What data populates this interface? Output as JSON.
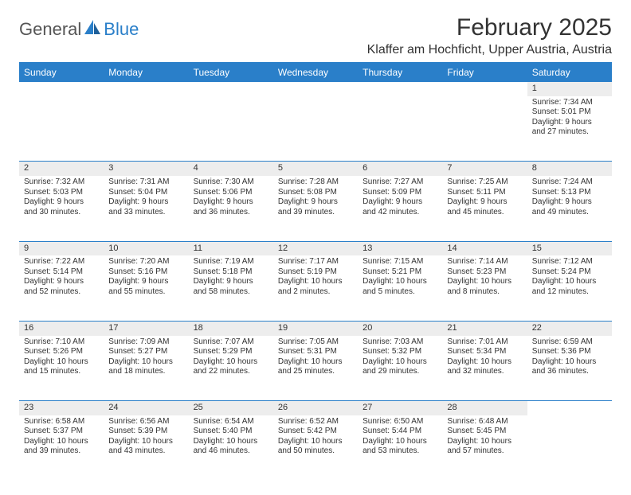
{
  "logo": {
    "text1": "General",
    "text2": "Blue"
  },
  "title": "February 2025",
  "location": "Klaffer am Hochficht, Upper Austria, Austria",
  "colors": {
    "accent": "#2a7fc9",
    "header_bg": "#2a7fc9",
    "header_text": "#ffffff",
    "daynum_bg": "#ededed",
    "text": "#333333",
    "background": "#ffffff"
  },
  "typography": {
    "title_fontsize": 30,
    "location_fontsize": 16,
    "weekday_fontsize": 12,
    "daynum_fontsize": 11,
    "cell_fontsize": 10
  },
  "weekdays": [
    "Sunday",
    "Monday",
    "Tuesday",
    "Wednesday",
    "Thursday",
    "Friday",
    "Saturday"
  ],
  "weeks": [
    [
      null,
      null,
      null,
      null,
      null,
      null,
      {
        "d": "1",
        "sunrise": "Sunrise: 7:34 AM",
        "sunset": "Sunset: 5:01 PM",
        "daylight": "Daylight: 9 hours and 27 minutes."
      }
    ],
    [
      {
        "d": "2",
        "sunrise": "Sunrise: 7:32 AM",
        "sunset": "Sunset: 5:03 PM",
        "daylight": "Daylight: 9 hours and 30 minutes."
      },
      {
        "d": "3",
        "sunrise": "Sunrise: 7:31 AM",
        "sunset": "Sunset: 5:04 PM",
        "daylight": "Daylight: 9 hours and 33 minutes."
      },
      {
        "d": "4",
        "sunrise": "Sunrise: 7:30 AM",
        "sunset": "Sunset: 5:06 PM",
        "daylight": "Daylight: 9 hours and 36 minutes."
      },
      {
        "d": "5",
        "sunrise": "Sunrise: 7:28 AM",
        "sunset": "Sunset: 5:08 PM",
        "daylight": "Daylight: 9 hours and 39 minutes."
      },
      {
        "d": "6",
        "sunrise": "Sunrise: 7:27 AM",
        "sunset": "Sunset: 5:09 PM",
        "daylight": "Daylight: 9 hours and 42 minutes."
      },
      {
        "d": "7",
        "sunrise": "Sunrise: 7:25 AM",
        "sunset": "Sunset: 5:11 PM",
        "daylight": "Daylight: 9 hours and 45 minutes."
      },
      {
        "d": "8",
        "sunrise": "Sunrise: 7:24 AM",
        "sunset": "Sunset: 5:13 PM",
        "daylight": "Daylight: 9 hours and 49 minutes."
      }
    ],
    [
      {
        "d": "9",
        "sunrise": "Sunrise: 7:22 AM",
        "sunset": "Sunset: 5:14 PM",
        "daylight": "Daylight: 9 hours and 52 minutes."
      },
      {
        "d": "10",
        "sunrise": "Sunrise: 7:20 AM",
        "sunset": "Sunset: 5:16 PM",
        "daylight": "Daylight: 9 hours and 55 minutes."
      },
      {
        "d": "11",
        "sunrise": "Sunrise: 7:19 AM",
        "sunset": "Sunset: 5:18 PM",
        "daylight": "Daylight: 9 hours and 58 minutes."
      },
      {
        "d": "12",
        "sunrise": "Sunrise: 7:17 AM",
        "sunset": "Sunset: 5:19 PM",
        "daylight": "Daylight: 10 hours and 2 minutes."
      },
      {
        "d": "13",
        "sunrise": "Sunrise: 7:15 AM",
        "sunset": "Sunset: 5:21 PM",
        "daylight": "Daylight: 10 hours and 5 minutes."
      },
      {
        "d": "14",
        "sunrise": "Sunrise: 7:14 AM",
        "sunset": "Sunset: 5:23 PM",
        "daylight": "Daylight: 10 hours and 8 minutes."
      },
      {
        "d": "15",
        "sunrise": "Sunrise: 7:12 AM",
        "sunset": "Sunset: 5:24 PM",
        "daylight": "Daylight: 10 hours and 12 minutes."
      }
    ],
    [
      {
        "d": "16",
        "sunrise": "Sunrise: 7:10 AM",
        "sunset": "Sunset: 5:26 PM",
        "daylight": "Daylight: 10 hours and 15 minutes."
      },
      {
        "d": "17",
        "sunrise": "Sunrise: 7:09 AM",
        "sunset": "Sunset: 5:27 PM",
        "daylight": "Daylight: 10 hours and 18 minutes."
      },
      {
        "d": "18",
        "sunrise": "Sunrise: 7:07 AM",
        "sunset": "Sunset: 5:29 PM",
        "daylight": "Daylight: 10 hours and 22 minutes."
      },
      {
        "d": "19",
        "sunrise": "Sunrise: 7:05 AM",
        "sunset": "Sunset: 5:31 PM",
        "daylight": "Daylight: 10 hours and 25 minutes."
      },
      {
        "d": "20",
        "sunrise": "Sunrise: 7:03 AM",
        "sunset": "Sunset: 5:32 PM",
        "daylight": "Daylight: 10 hours and 29 minutes."
      },
      {
        "d": "21",
        "sunrise": "Sunrise: 7:01 AM",
        "sunset": "Sunset: 5:34 PM",
        "daylight": "Daylight: 10 hours and 32 minutes."
      },
      {
        "d": "22",
        "sunrise": "Sunrise: 6:59 AM",
        "sunset": "Sunset: 5:36 PM",
        "daylight": "Daylight: 10 hours and 36 minutes."
      }
    ],
    [
      {
        "d": "23",
        "sunrise": "Sunrise: 6:58 AM",
        "sunset": "Sunset: 5:37 PM",
        "daylight": "Daylight: 10 hours and 39 minutes."
      },
      {
        "d": "24",
        "sunrise": "Sunrise: 6:56 AM",
        "sunset": "Sunset: 5:39 PM",
        "daylight": "Daylight: 10 hours and 43 minutes."
      },
      {
        "d": "25",
        "sunrise": "Sunrise: 6:54 AM",
        "sunset": "Sunset: 5:40 PM",
        "daylight": "Daylight: 10 hours and 46 minutes."
      },
      {
        "d": "26",
        "sunrise": "Sunrise: 6:52 AM",
        "sunset": "Sunset: 5:42 PM",
        "daylight": "Daylight: 10 hours and 50 minutes."
      },
      {
        "d": "27",
        "sunrise": "Sunrise: 6:50 AM",
        "sunset": "Sunset: 5:44 PM",
        "daylight": "Daylight: 10 hours and 53 minutes."
      },
      {
        "d": "28",
        "sunrise": "Sunrise: 6:48 AM",
        "sunset": "Sunset: 5:45 PM",
        "daylight": "Daylight: 10 hours and 57 minutes."
      },
      null
    ]
  ]
}
